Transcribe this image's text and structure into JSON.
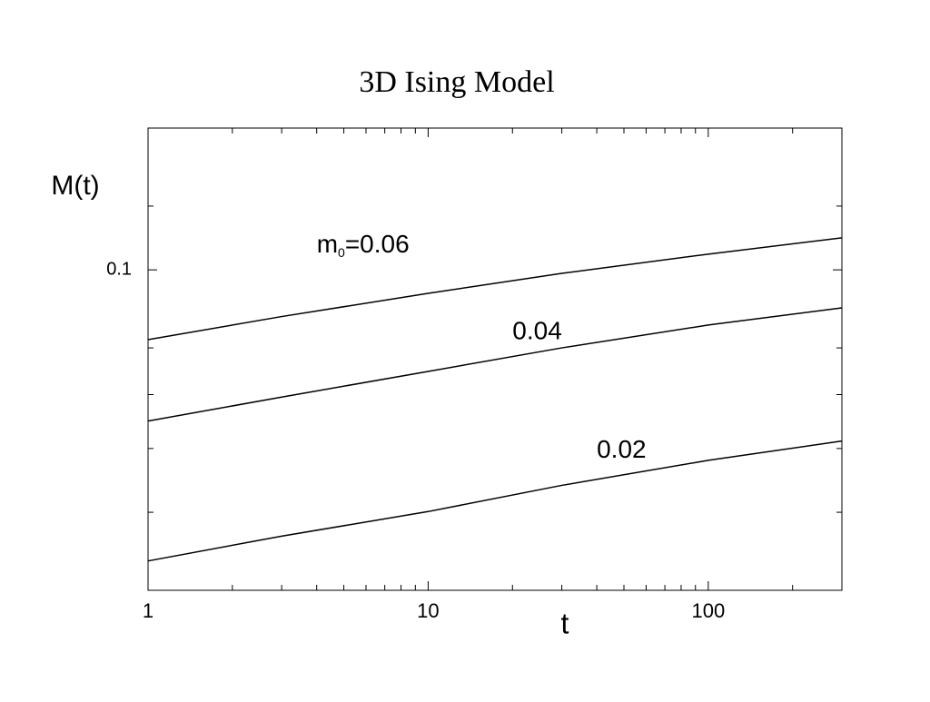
{
  "chart_data": {
    "type": "line",
    "title": "3D Ising Model",
    "x_label": "t",
    "y_label": "M(t)",
    "log_x": true,
    "log_y": true,
    "x": [
      1,
      3,
      10,
      30,
      100,
      300
    ],
    "series": [
      {
        "color": "#000000",
        "values": [
          0.0819,
          0.0875,
          0.0935,
          0.099,
          0.1046,
          0.1096
        ]
      },
      {
        "color": "#000000",
        "values": [
          0.0649,
          0.0695,
          0.0748,
          0.08,
          0.0854,
          0.0897
        ]
      },
      {
        "color": "#000000",
        "values": [
          0.0435,
          0.0467,
          0.0501,
          0.054,
          0.058,
          0.0613
        ]
      }
    ],
    "annotations": [
      {
        "parts": [
          "m",
          "0",
          "=0.06"
        ],
        "x": 4,
        "y": 0.107
      },
      {
        "parts": [
          "0.04"
        ],
        "x": 20,
        "y": 0.0835
      },
      {
        "parts": [
          "0.02"
        ],
        "x": 40,
        "y": 0.0595
      }
    ],
    "xlim": [
      1,
      300
    ],
    "ylim": [
      0.04,
      0.15
    ],
    "xticks": [
      1,
      10,
      100
    ],
    "xminor": [
      2,
      3,
      4,
      5,
      6,
      7,
      8,
      9,
      20,
      30,
      40,
      50,
      60,
      70,
      80,
      90,
      200,
      300
    ],
    "yticks": [
      0.1
    ],
    "yminor": [
      0.05,
      0.06,
      0.07,
      0.08,
      0.12
    ]
  }
}
